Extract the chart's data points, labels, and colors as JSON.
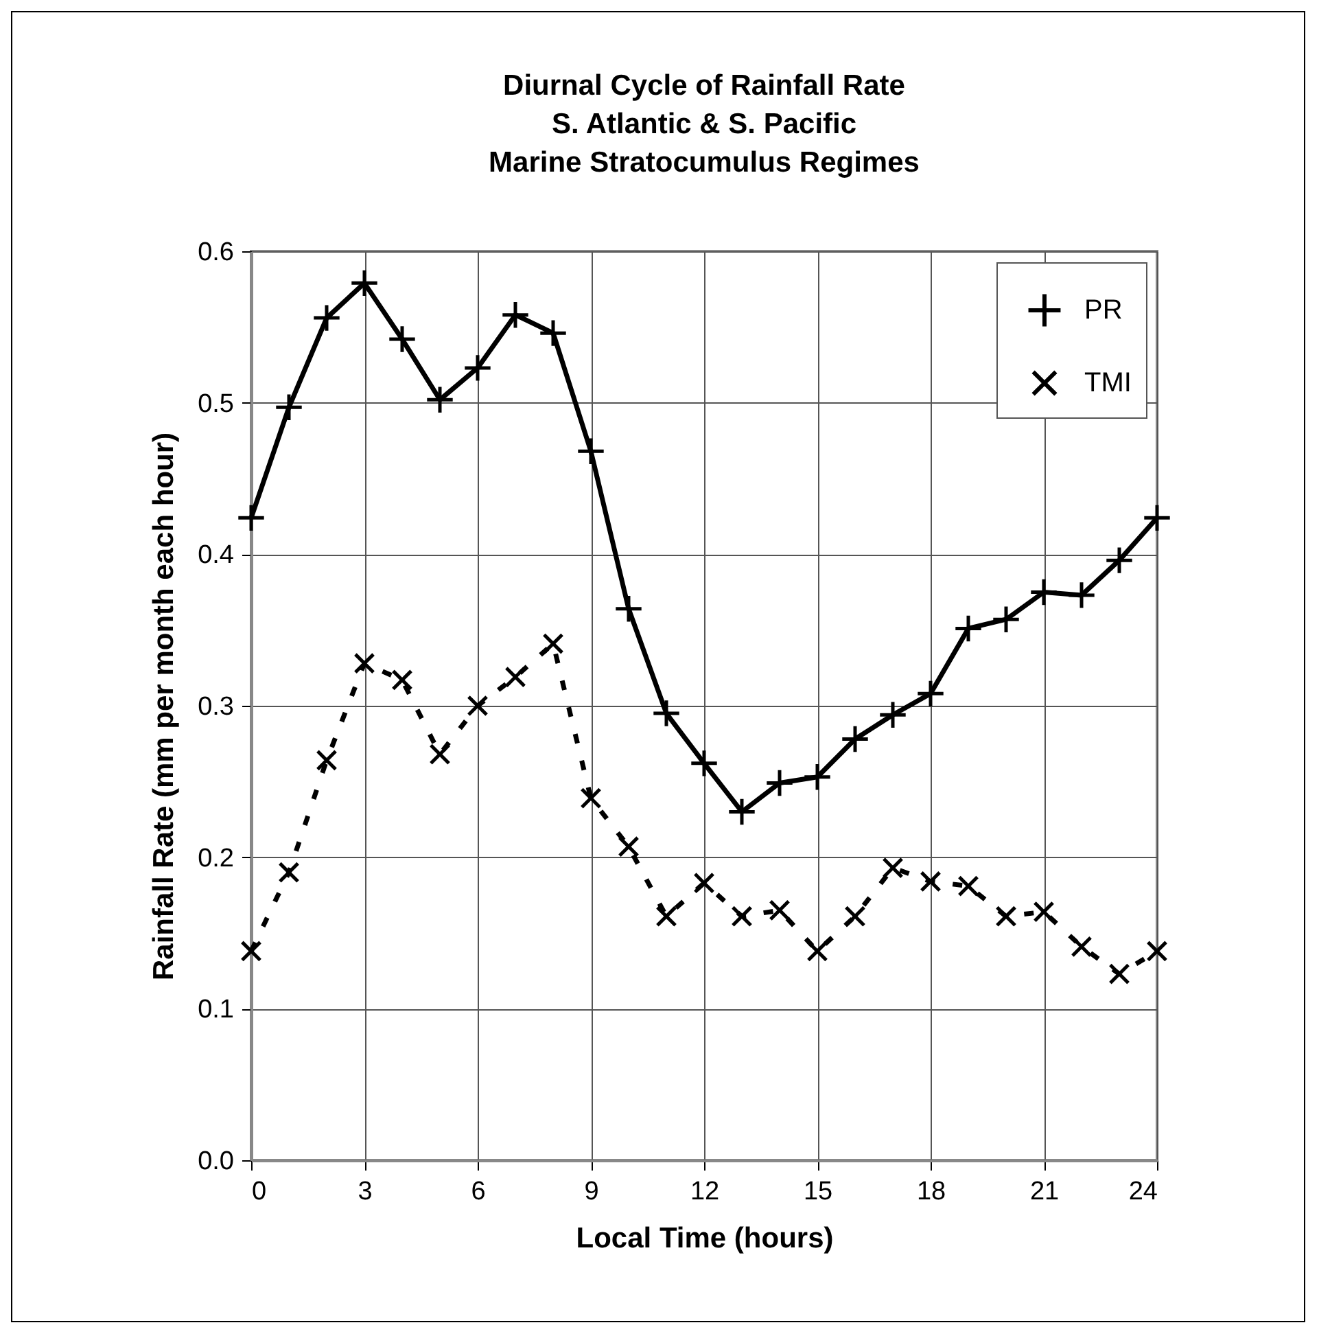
{
  "chart_data": {
    "type": "line",
    "title": "Diurnal Cycle of Rainfall Rate\nS. Atlantic & S. Pacific\nMarine Stratocumulus Regimes",
    "xlabel": "Local Time (hours)",
    "ylabel": "Rainfall Rate (mm per month each hour)",
    "x": [
      0,
      1,
      2,
      3,
      4,
      5,
      6,
      7,
      8,
      9,
      10,
      11,
      12,
      13,
      14,
      15,
      16,
      17,
      18,
      19,
      20,
      21,
      22,
      23,
      24
    ],
    "series": [
      {
        "name": "PR",
        "color": "#000000",
        "line_style": "solid",
        "marker": "cross",
        "values": [
          0.424,
          0.497,
          0.556,
          0.579,
          0.542,
          0.502,
          0.523,
          0.558,
          0.546,
          0.468,
          0.364,
          0.295,
          0.262,
          0.23,
          0.249,
          0.253,
          0.278,
          0.294,
          0.308,
          0.351,
          0.357,
          0.375,
          0.373,
          0.396,
          0.424
        ]
      },
      {
        "name": "TMI",
        "color": "#000000",
        "line_style": "dashed",
        "marker": "x",
        "values": [
          0.138,
          0.19,
          0.264,
          0.328,
          0.317,
          0.268,
          0.3,
          0.319,
          0.341,
          0.239,
          0.207,
          0.161,
          0.183,
          0.161,
          0.165,
          0.138,
          0.161,
          0.193,
          0.184,
          0.181,
          0.161,
          0.164,
          0.141,
          0.123,
          0.138
        ]
      }
    ],
    "xlim": [
      0,
      24
    ],
    "xticks": [
      0,
      3,
      6,
      9,
      12,
      15,
      18,
      21,
      24
    ],
    "ylim": [
      0,
      0.6
    ],
    "yticks": [
      {
        "value": 0,
        "label": "0.0"
      },
      0.1,
      0.2,
      0.3,
      0.4,
      0.5,
      0.6
    ],
    "grid": true,
    "legend": "top right"
  }
}
